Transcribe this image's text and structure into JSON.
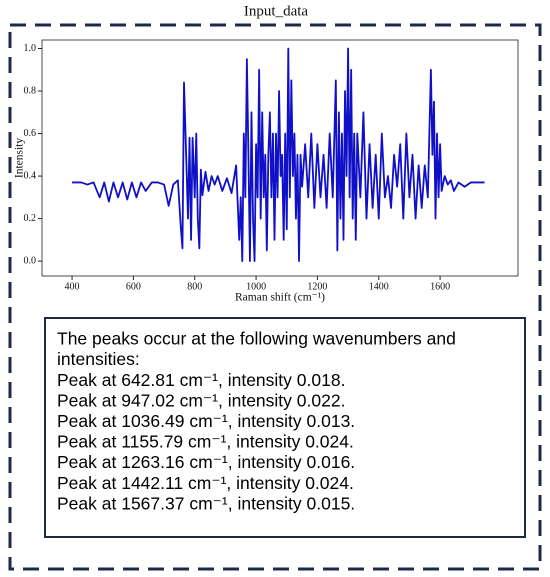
{
  "chart_data": {
    "type": "line",
    "title": "Input_data",
    "xlabel": "Raman shift (cm⁻¹)",
    "ylabel": "Intensity",
    "color": "#1010c8",
    "x": [
      400,
      430,
      450,
      470,
      490,
      505,
      520,
      535,
      550,
      565,
      580,
      595,
      610,
      625,
      640,
      660,
      680,
      700,
      715,
      730,
      745,
      755,
      760,
      765,
      772,
      778,
      783,
      788,
      793,
      800,
      805,
      810,
      815,
      820,
      825,
      835,
      845,
      855,
      865,
      875,
      890,
      905,
      920,
      935,
      945,
      950,
      955,
      960,
      965,
      970,
      975,
      980,
      985,
      990,
      995,
      1000,
      1005,
      1010,
      1015,
      1020,
      1025,
      1030,
      1035,
      1040,
      1045,
      1050,
      1055,
      1060,
      1065,
      1070,
      1075,
      1080,
      1085,
      1090,
      1095,
      1100,
      1105,
      1110,
      1115,
      1120,
      1125,
      1130,
      1135,
      1140,
      1145,
      1150,
      1160,
      1170,
      1180,
      1190,
      1200,
      1210,
      1220,
      1230,
      1240,
      1250,
      1260,
      1265,
      1270,
      1275,
      1280,
      1285,
      1290,
      1295,
      1300,
      1305,
      1310,
      1315,
      1320,
      1325,
      1330,
      1340,
      1350,
      1360,
      1370,
      1380,
      1390,
      1400,
      1410,
      1420,
      1430,
      1440,
      1450,
      1460,
      1470,
      1480,
      1490,
      1500,
      1510,
      1520,
      1530,
      1540,
      1550,
      1560,
      1570,
      1575,
      1580,
      1585,
      1590,
      1595,
      1600,
      1605,
      1615,
      1625,
      1635,
      1645,
      1660,
      1680,
      1700,
      1720,
      1745
    ],
    "values": [
      0.37,
      0.37,
      0.36,
      0.37,
      0.3,
      0.37,
      0.28,
      0.37,
      0.3,
      0.37,
      0.29,
      0.37,
      0.3,
      0.37,
      0.33,
      0.37,
      0.37,
      0.36,
      0.26,
      0.36,
      0.38,
      0.15,
      0.06,
      0.84,
      0.5,
      0.2,
      0.58,
      0.1,
      0.58,
      0.3,
      0.6,
      0.2,
      0.06,
      0.43,
      0.31,
      0.42,
      0.33,
      0.4,
      0.36,
      0.4,
      0.33,
      0.39,
      0.32,
      0.45,
      0.1,
      0.3,
      0.0,
      0.6,
      0.3,
      0.95,
      0.5,
      0.0,
      0.7,
      0.2,
      0.0,
      0.55,
      0.3,
      0.9,
      0.2,
      0.7,
      0.3,
      0.5,
      0.05,
      0.5,
      0.7,
      0.3,
      0.6,
      0.1,
      0.6,
      0.3,
      0.8,
      0.4,
      0.5,
      0.1,
      0.6,
      0.15,
      1.0,
      0.3,
      0.85,
      0.4,
      0.6,
      0.2,
      0.5,
      0.0,
      0.5,
      0.35,
      0.55,
      0.3,
      0.6,
      0.25,
      0.55,
      0.3,
      0.5,
      0.25,
      0.6,
      0.3,
      0.85,
      0.05,
      0.7,
      0.2,
      0.6,
      0.1,
      0.8,
      0.4,
      1.0,
      0.3,
      0.9,
      0.2,
      0.6,
      0.1,
      0.6,
      0.3,
      0.7,
      0.2,
      0.55,
      0.25,
      0.5,
      0.2,
      0.6,
      0.3,
      0.4,
      0.25,
      0.5,
      0.35,
      0.55,
      0.2,
      0.6,
      0.3,
      0.5,
      0.2,
      0.45,
      0.25,
      0.45,
      0.3,
      0.9,
      0.5,
      0.75,
      0.2,
      0.6,
      0.3,
      0.55,
      0.33,
      0.4,
      0.36,
      0.38,
      0.33,
      0.37,
      0.35,
      0.37,
      0.37,
      0.37
    ],
    "xlim": [
      302,
      1854
    ],
    "ylim": [
      -0.07,
      1.04
    ],
    "xticks": [
      400,
      600,
      800,
      1000,
      1200,
      1400,
      1600
    ],
    "yticks": [
      {
        "value": 0,
        "label": "0.0"
      },
      0.2,
      0.4,
      0.6,
      0.8,
      {
        "value": 1,
        "label": "1.0"
      }
    ]
  },
  "text_box": {
    "lines": [
      "The peaks occur at the following wavenumbers and",
      "intensities:",
      "Peak at 642.81 cm⁻¹, intensity 0.018.",
      "Peak at 947.02 cm⁻¹, intensity 0.022.",
      "Peak at 1036.49 cm⁻¹, intensity 0.013.",
      "Peak at 1155.79 cm⁻¹, intensity 0.024.",
      "Peak at 1263.16 cm⁻¹, intensity 0.016.",
      "Peak at 1442.11 cm⁻¹, intensity 0.024.",
      "Peak at 1567.37 cm⁻¹, intensity 0.015."
    ]
  }
}
